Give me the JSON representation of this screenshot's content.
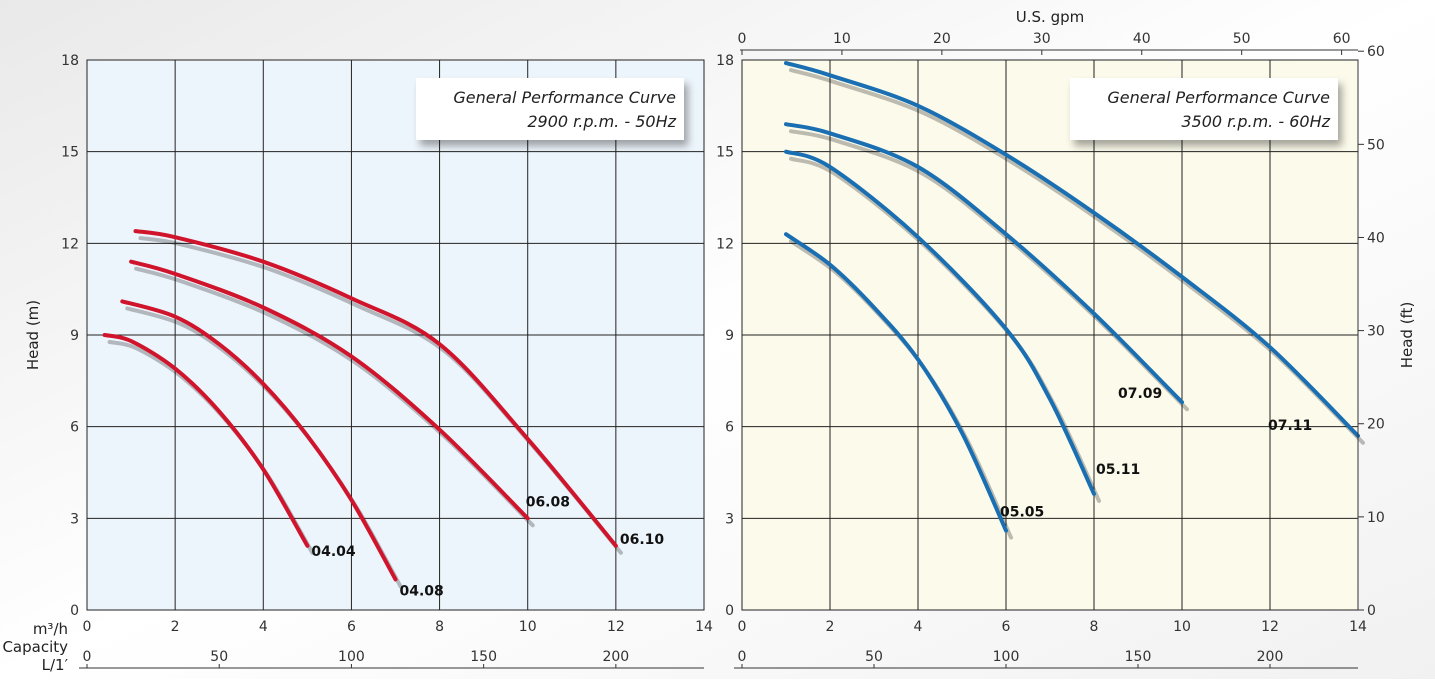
{
  "chart_data": [
    {
      "type": "line",
      "subtitle": [
        "General Performance Curve",
        "2900 r.p.m. - 50Hz"
      ],
      "x_axis": {
        "label": "m³/h",
        "range": [
          0,
          14
        ],
        "ticks": [
          0,
          2,
          4,
          6,
          8,
          10,
          12,
          14
        ]
      },
      "y_axis": {
        "label": "Head (m)",
        "range": [
          0,
          18
        ],
        "ticks": [
          0,
          3,
          6,
          9,
          12,
          15,
          18
        ]
      },
      "secondary_x_axis": {
        "labels": [
          "Capacity",
          "L/1′"
        ],
        "ticks": [
          0,
          50,
          100,
          150,
          200
        ]
      },
      "background": "#edf5fc",
      "series_color": "#d0142c",
      "grid": true,
      "series": [
        {
          "name": "04.04",
          "points": [
            [
              0.4,
              9.0
            ],
            [
              1.0,
              8.8
            ],
            [
              2.0,
              7.9
            ],
            [
              3.0,
              6.5
            ],
            [
              4.0,
              4.6
            ],
            [
              5.0,
              2.1
            ]
          ]
        },
        {
          "name": "04.08",
          "points": [
            [
              0.8,
              10.1
            ],
            [
              2.0,
              9.6
            ],
            [
              3.0,
              8.7
            ],
            [
              4.0,
              7.4
            ],
            [
              5.0,
              5.7
            ],
            [
              6.0,
              3.6
            ],
            [
              7.0,
              1.0
            ]
          ]
        },
        {
          "name": "06.08",
          "points": [
            [
              1.0,
              11.4
            ],
            [
              2.0,
              11.0
            ],
            [
              4.0,
              9.9
            ],
            [
              6.0,
              8.3
            ],
            [
              8.0,
              5.9
            ],
            [
              10.0,
              3.0
            ]
          ]
        },
        {
          "name": "06.10",
          "points": [
            [
              1.1,
              12.4
            ],
            [
              2.0,
              12.2
            ],
            [
              4.0,
              11.4
            ],
            [
              6.0,
              10.2
            ],
            [
              8.0,
              8.7
            ],
            [
              10.0,
              5.6
            ],
            [
              12.0,
              2.1
            ]
          ]
        }
      ]
    },
    {
      "type": "line",
      "subtitle": [
        "General Performance Curve",
        "3500 r.p.m. - 60Hz"
      ],
      "x_axis": {
        "range": [
          0,
          14
        ],
        "ticks": [
          0,
          2,
          4,
          6,
          8,
          10,
          12,
          14
        ]
      },
      "y_axis": {
        "range": [
          0,
          18
        ],
        "ticks": [
          0,
          3,
          6,
          9,
          12,
          15,
          18
        ]
      },
      "top_axis": {
        "label": "U.S. gpm",
        "ticks": [
          0,
          10,
          20,
          30,
          40,
          50,
          60
        ]
      },
      "right_axis": {
        "label": "Head (ft)",
        "ticks": [
          0,
          10,
          20,
          30,
          40,
          50,
          60
        ]
      },
      "secondary_x_axis": {
        "ticks": [
          0,
          50,
          100,
          150,
          200
        ]
      },
      "background": "#fcfaea",
      "series_color": "#1a6fb2",
      "grid": true,
      "series": [
        {
          "name": "05.05",
          "points": [
            [
              1.0,
              12.3
            ],
            [
              2.0,
              11.3
            ],
            [
              3.0,
              9.9
            ],
            [
              4.0,
              8.2
            ],
            [
              5.0,
              5.8
            ],
            [
              6.0,
              2.6
            ]
          ]
        },
        {
          "name": "05.11",
          "points": [
            [
              1.0,
              15.0
            ],
            [
              2.0,
              14.5
            ],
            [
              4.0,
              12.2
            ],
            [
              6.0,
              9.2
            ],
            [
              7.0,
              6.9
            ],
            [
              8.0,
              3.8
            ]
          ]
        },
        {
          "name": "07.09",
          "points": [
            [
              1.0,
              15.9
            ],
            [
              2.0,
              15.6
            ],
            [
              4.0,
              14.5
            ],
            [
              6.0,
              12.3
            ],
            [
              8.0,
              9.7
            ],
            [
              10.0,
              6.8
            ]
          ]
        },
        {
          "name": "07.11",
          "points": [
            [
              1.0,
              17.9
            ],
            [
              2.0,
              17.5
            ],
            [
              4.0,
              16.5
            ],
            [
              6.0,
              14.9
            ],
            [
              8.0,
              13.0
            ],
            [
              10.0,
              10.9
            ],
            [
              12.0,
              8.6
            ],
            [
              14.0,
              5.7
            ]
          ]
        }
      ]
    }
  ]
}
